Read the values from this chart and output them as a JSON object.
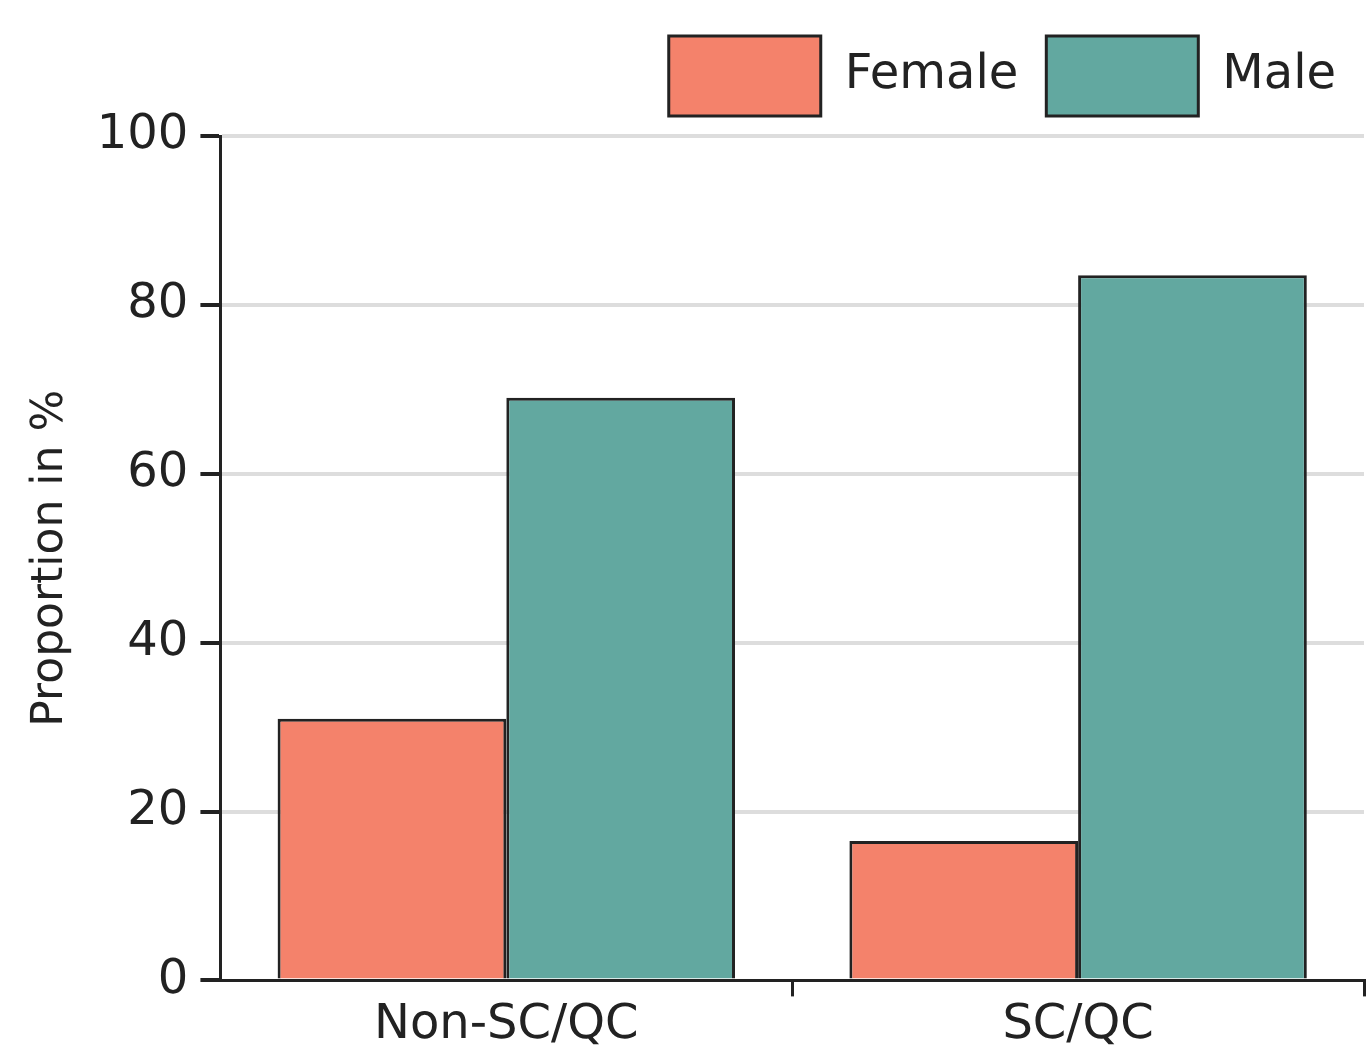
{
  "chart_data": {
    "type": "bar",
    "ylabel": "Proportion in %",
    "categories": [
      "Non-SC/QC",
      "SC/QC"
    ],
    "series": [
      {
        "name": "Female",
        "color": "#f4826b",
        "values": [
          31,
          16.5
        ]
      },
      {
        "name": "Male",
        "color": "#62a8a0",
        "values": [
          69,
          83.5
        ]
      }
    ],
    "ylim": [
      0,
      100
    ],
    "yticks": [
      0,
      20,
      40,
      60,
      80,
      100
    ],
    "grid": "y",
    "legend": "top"
  }
}
